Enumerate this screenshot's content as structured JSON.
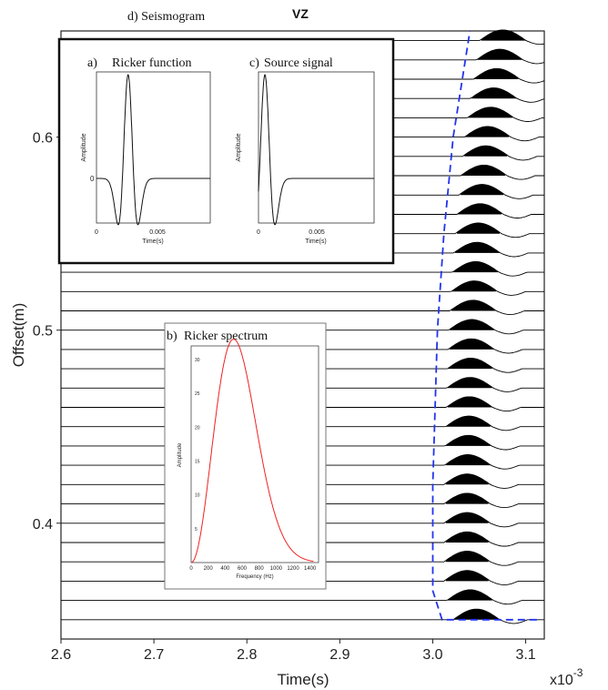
{
  "chart_data": [
    {
      "id": "seismogram",
      "type": "line",
      "panel_label": "d) Seismogram",
      "title": "VZ",
      "xlabel": "Time(s)",
      "ylabel": "Offset(m)",
      "x_multiplier": "x10",
      "x_multiplier_exp": "-3",
      "xlim": [
        2.6,
        3.12
      ],
      "ylim": [
        0.34,
        0.655
      ],
      "x_ticks": [
        2.6,
        2.7,
        2.8,
        2.9,
        3.0,
        3.1
      ],
      "x_tick_labels": [
        "2.6",
        "2.7",
        "2.8",
        "2.9",
        "3.0",
        "3.1"
      ],
      "y_ticks": [
        0.4,
        0.5,
        0.6
      ],
      "y_tick_labels": [
        "0.4",
        "0.5",
        "0.6"
      ],
      "grid": false,
      "traces": {
        "offset_start": 0.35,
        "offset_end": 0.65,
        "count": 31,
        "pulse": "ricker",
        "fill": "positive",
        "trace_color": "#000000"
      },
      "first_break_pick": {
        "style": "dashed",
        "color": "#2233ee",
        "points": [
          [
            3.112,
            0.35
          ],
          [
            3.01,
            0.35
          ],
          [
            3.0,
            0.365
          ],
          [
            3.0,
            0.42
          ],
          [
            3.005,
            0.5
          ],
          [
            3.012,
            0.55
          ],
          [
            3.022,
            0.6
          ],
          [
            3.04,
            0.655
          ]
        ]
      }
    },
    {
      "id": "ricker-function",
      "type": "line",
      "panel_label": "a)",
      "title": "Ricker function",
      "xlabel": "Time(s)",
      "ylabel": "Amplitude",
      "x_tick_labels": [
        "0",
        "0.005"
      ],
      "y_tick_labels": [
        "0"
      ],
      "wavelet": {
        "center_s": 0.0025,
        "peak_frequency_hz": 500
      }
    },
    {
      "id": "source-signal",
      "type": "line",
      "panel_label": "c)",
      "title": "Source signal",
      "xlabel": "Time(s)",
      "ylabel": "Amplitude",
      "x_tick_labels": [
        "0",
        "0.005"
      ],
      "wavelet": {
        "center_s": 0.0005,
        "peak_frequency_hz": 500
      }
    },
    {
      "id": "ricker-spectrum",
      "type": "line",
      "panel_label": "b)",
      "title": "Ricker spectrum",
      "xlabel": "Frequency (Hz)",
      "ylabel": "Amplitude",
      "xlim": [
        0,
        1500
      ],
      "ylim": [
        0,
        32
      ],
      "x_tick_labels": [
        "0",
        "200",
        "400",
        "600",
        "800",
        "1000",
        "1200",
        "1400"
      ],
      "y_tick_labels": [
        "30",
        "25",
        "20",
        "15",
        "10",
        "5"
      ],
      "line_color": "#ee2222",
      "peak_frequency_hz": 500,
      "peak_amplitude": 33
    }
  ]
}
